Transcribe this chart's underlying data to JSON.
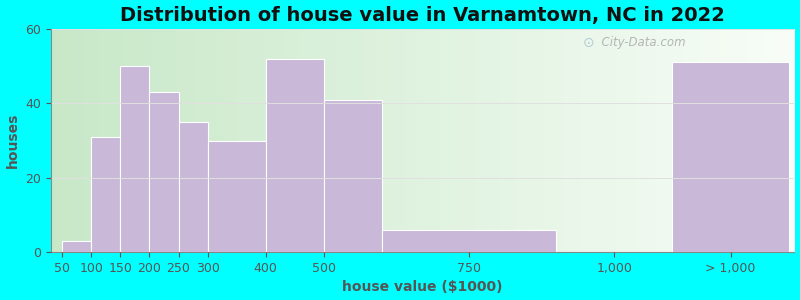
{
  "title": "Distribution of house value in Varnamtown, NC in 2022",
  "xlabel": "house value ($1000)",
  "ylabel": "houses",
  "background_color": "#00ffff",
  "bar_color": "#c9b8d8",
  "bar_edge_color": "#ffffff",
  "ylim": [
    0,
    60
  ],
  "yticks": [
    0,
    20,
    40,
    60
  ],
  "title_fontsize": 14,
  "axis_label_fontsize": 10,
  "tick_fontsize": 9,
  "watermark_text": "City-Data.com",
  "bins_left": [
    50,
    100,
    150,
    200,
    250,
    300,
    400,
    500,
    600,
    900,
    1100
  ],
  "bins_right": [
    100,
    150,
    200,
    250,
    300,
    400,
    500,
    600,
    900,
    1100,
    1300
  ],
  "bar_heights": [
    3,
    31,
    50,
    43,
    35,
    30,
    52,
    41,
    6,
    0,
    51
  ],
  "xtick_positions": [
    50,
    100,
    150,
    200,
    250,
    300,
    400,
    500,
    750,
    1000,
    1200
  ],
  "xtick_labels": [
    "50",
    "100",
    "150",
    "200",
    "250",
    "300",
    "400",
    "500",
    "750",
    "1,000",
    "> 1,000"
  ],
  "xlim": [
    30,
    1310
  ],
  "plot_bg_gradient_stops": [
    "#d8eed8",
    "#eef7ee",
    "#f5faf5",
    "#ffffff"
  ],
  "grid_color": "#e0e0e0"
}
